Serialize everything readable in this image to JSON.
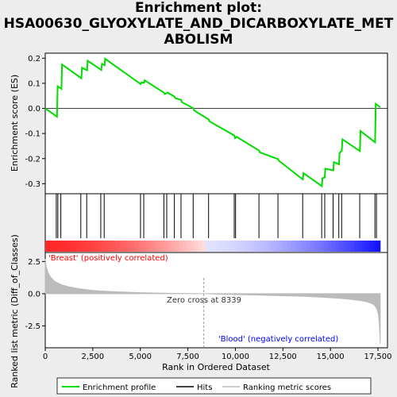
{
  "title_line1": "Enrichment plot:",
  "title_line2": "HSA00630_GLYOXYLATE_AND_DICARBOXYLATE_MET",
  "title_line3": "ABOLISM",
  "colors": {
    "es_line": "#00dd00",
    "hits": "#000000",
    "metric": "#bbbbbb",
    "positive": "#ff0000",
    "negative": "#0000ff"
  },
  "chart_data": {
    "type": "line",
    "x_range": [
      0,
      18000
    ],
    "x_ticks": [
      0,
      2500,
      5000,
      7500,
      10000,
      12500,
      15000,
      17500
    ],
    "x_tick_labels": [
      "0",
      "2,500",
      "5,000",
      "7,500",
      "10,000",
      "12,500",
      "15,000",
      "17,500"
    ],
    "xlabel": "Rank in Ordered Dataset",
    "es_panel": {
      "ylabel": "Enrichment score (ES)",
      "ylim": [
        -0.34,
        0.22
      ],
      "y_ticks": [
        -0.3,
        -0.2,
        -0.1,
        0.0,
        0.1,
        0.2
      ],
      "y_tick_labels": [
        "-0.3",
        "-0.2",
        "-0.1",
        "0.0",
        "0.1",
        "0.2"
      ],
      "series": [
        {
          "name": "Enrichment profile",
          "x": [
            0,
            620,
            650,
            850,
            880,
            1900,
            1930,
            2200,
            2230,
            2950,
            2980,
            3120,
            3150,
            5020,
            5050,
            5200,
            5230,
            6250,
            6280,
            6400,
            6430,
            6800,
            6830,
            7150,
            7180,
            7800,
            7830,
            8600,
            8630,
            9950,
            9980,
            10030,
            10060,
            11250,
            11280,
            12250,
            12280,
            13550,
            13580,
            14550,
            14580,
            14700,
            14730,
            15150,
            15180,
            15450,
            15480,
            15600,
            15630,
            16550,
            16580,
            17350,
            17380,
            17620
          ],
          "y": [
            0.0,
            -0.033,
            0.088,
            0.078,
            0.175,
            0.12,
            0.162,
            0.152,
            0.19,
            0.153,
            0.178,
            0.172,
            0.198,
            0.097,
            0.103,
            0.102,
            0.112,
            0.062,
            0.057,
            0.061,
            0.063,
            0.047,
            0.041,
            0.034,
            0.025,
            0.0,
            -0.008,
            -0.044,
            -0.051,
            -0.108,
            -0.119,
            -0.117,
            -0.113,
            -0.168,
            -0.175,
            -0.202,
            -0.208,
            -0.283,
            -0.258,
            -0.31,
            -0.278,
            -0.275,
            -0.24,
            -0.247,
            -0.214,
            -0.223,
            -0.177,
            -0.169,
            -0.123,
            -0.17,
            -0.09,
            -0.135,
            0.018,
            0.005
          ]
        }
      ]
    },
    "hits": [
      580,
      660,
      820,
      1870,
      2180,
      2920,
      3100,
      5010,
      5180,
      6240,
      6390,
      6790,
      7140,
      7780,
      8590,
      9940,
      10010,
      11240,
      12240,
      13540,
      14540,
      14700,
      15140,
      15440,
      15590,
      16540,
      17340,
      17420
    ],
    "metric_panel": {
      "ylabel": "Ranked list metric (Diff_of_Classes)",
      "ylim": [
        -4.2,
        3.2
      ],
      "y_ticks": [
        -2.5,
        0.0,
        2.5
      ],
      "y_tick_labels": [
        "-2.5",
        "0.0",
        "2.5"
      ],
      "series": [
        {
          "name": "Ranking metric scores",
          "x": [
            0,
            50,
            150,
            300,
            500,
            800,
            1200,
            1800,
            2500,
            3500,
            5000,
            6500,
            8339,
            9500,
            11000,
            12500,
            13500,
            14500,
            15500,
            16200,
            16700,
            17000,
            17200,
            17350,
            17450,
            17520,
            17570,
            17600,
            17620
          ],
          "values": [
            2.7,
            2.1,
            1.6,
            1.25,
            0.95,
            0.72,
            0.55,
            0.38,
            0.26,
            0.16,
            0.08,
            0.03,
            0.0,
            -0.05,
            -0.1,
            -0.16,
            -0.2,
            -0.27,
            -0.36,
            -0.46,
            -0.56,
            -0.66,
            -0.78,
            -0.95,
            -1.2,
            -1.6,
            -2.3,
            -3.2,
            -3.9
          ]
        }
      ]
    },
    "annotations": {
      "positive_label": "'Breast' (positively correlated)",
      "negative_label": "'Blood' (negatively correlated)",
      "zero_cross_text": "Zero cross at 8339",
      "zero_cross": 8339
    },
    "legend": {
      "position": "bottom",
      "entries": [
        "Enrichment profile",
        "Hits",
        "Ranking metric scores"
      ]
    }
  }
}
